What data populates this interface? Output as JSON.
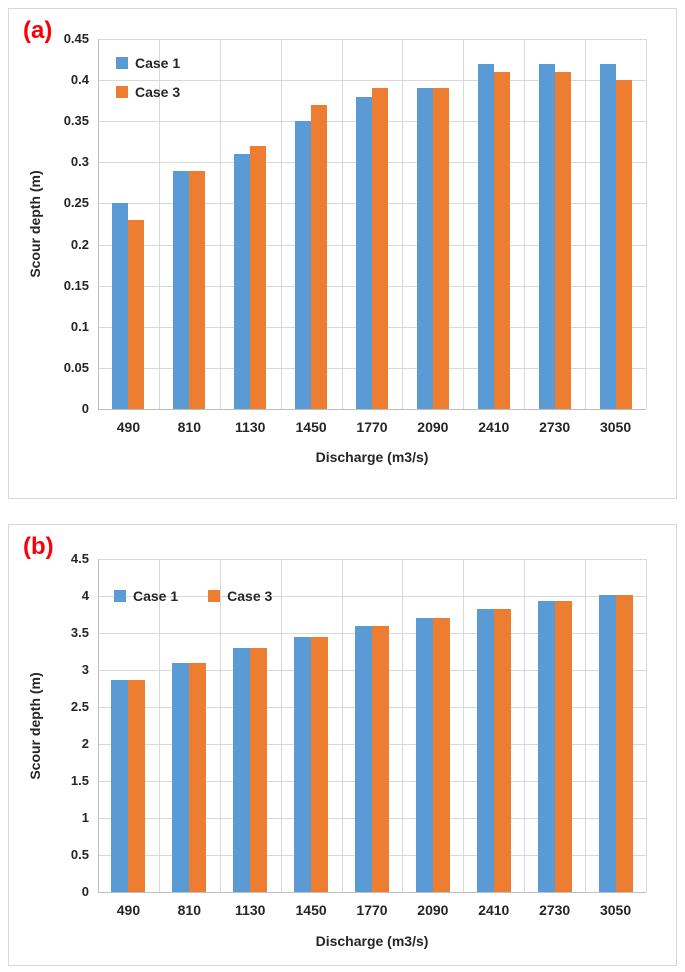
{
  "colors": {
    "case1": "#5B9BD5",
    "case3": "#ED7D31",
    "gridline": "#D9D9D9",
    "axis_line": "#BFBFBF",
    "text": "#262626",
    "panel_label": "#FB0007",
    "panel_border": "#D8D8D8",
    "background": "#FFFFFF"
  },
  "chart_data": [
    {
      "type": "bar",
      "panel_label": "(a)",
      "title": "",
      "xlabel": "Discharge (m3/s)",
      "ylabel": "Scour depth (m)",
      "categories": [
        "490",
        "810",
        "1130",
        "1450",
        "1770",
        "2090",
        "2410",
        "2730",
        "3050"
      ],
      "series": [
        {
          "name": "Case 1",
          "color_key": "case1",
          "values": [
            0.25,
            0.29,
            0.31,
            0.35,
            0.38,
            0.39,
            0.42,
            0.42,
            0.42
          ]
        },
        {
          "name": "Case 3",
          "color_key": "case3",
          "values": [
            0.23,
            0.29,
            0.32,
            0.37,
            0.39,
            0.39,
            0.41,
            0.41,
            0.4
          ]
        }
      ],
      "ylim": [
        0,
        0.45
      ],
      "ytick_step": 0.05,
      "ytick_labels": [
        "0.45",
        "0.4",
        "0.35",
        "0.3",
        "0.25",
        "0.2",
        "0.15",
        "0.1",
        "0.05",
        "0"
      ],
      "grid": {
        "horizontal": true,
        "vertical": true
      },
      "legend": {
        "position": "top-left-inside",
        "orientation": "vertical"
      }
    },
    {
      "type": "bar",
      "panel_label": "(b)",
      "title": "",
      "xlabel": "Discharge (m3/s)",
      "ylabel": "Scour depth (m)",
      "categories": [
        "490",
        "810",
        "1130",
        "1450",
        "1770",
        "2090",
        "2410",
        "2730",
        "3050"
      ],
      "series": [
        {
          "name": "Case 1",
          "color_key": "case1",
          "values": [
            2.87,
            3.1,
            3.3,
            3.45,
            3.6,
            3.7,
            3.82,
            3.93,
            4.02
          ]
        },
        {
          "name": "Case 3",
          "color_key": "case3",
          "values": [
            2.87,
            3.1,
            3.3,
            3.45,
            3.6,
            3.7,
            3.82,
            3.93,
            4.02
          ]
        }
      ],
      "ylim": [
        0,
        4.5
      ],
      "ytick_step": 0.5,
      "ytick_labels": [
        "4.5",
        "4",
        "3.5",
        "3",
        "2.5",
        "2",
        "1.5",
        "1",
        "0.5",
        "0"
      ],
      "grid": {
        "horizontal": true,
        "vertical": true
      },
      "legend": {
        "position": "top-left-inside",
        "orientation": "horizontal"
      }
    }
  ]
}
